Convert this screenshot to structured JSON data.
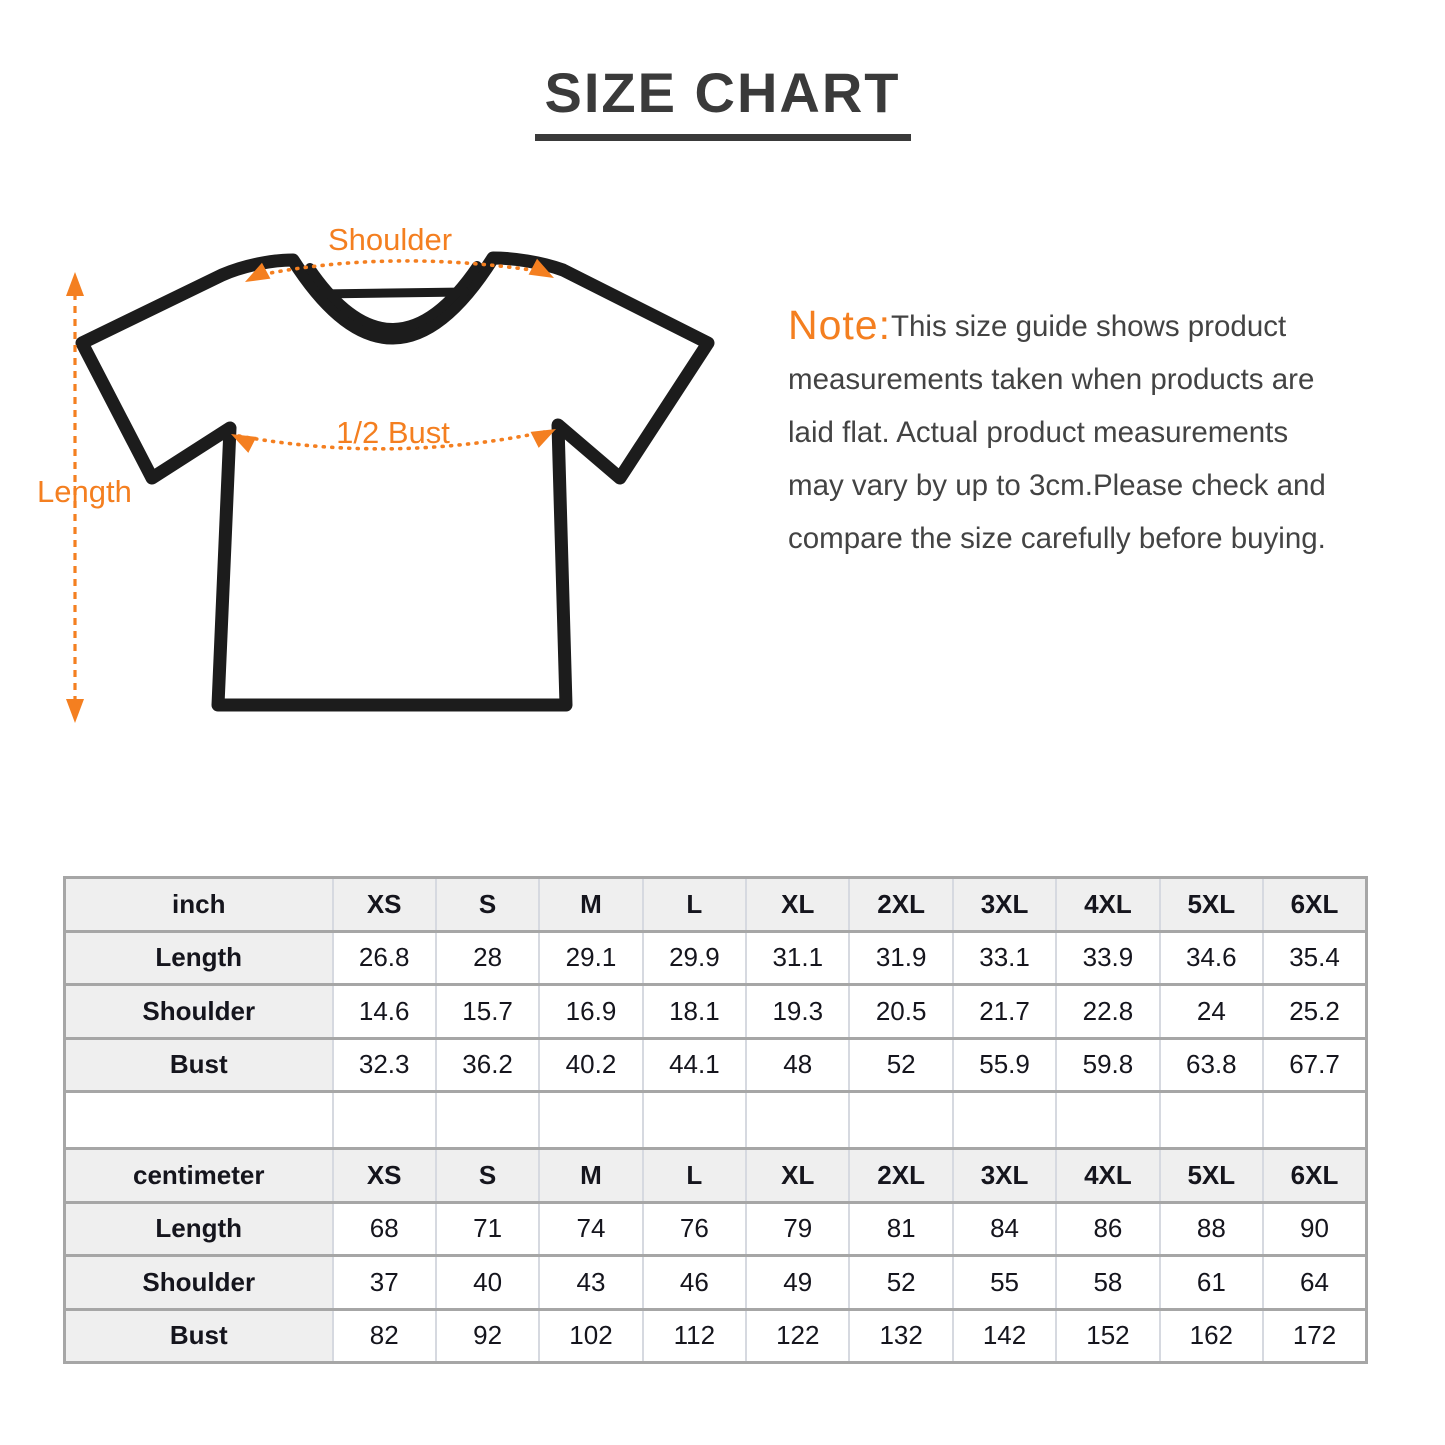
{
  "page": {
    "title": "SIZE CHART"
  },
  "theme": {
    "accent": "#f47f20",
    "ink": "#3a3a3a",
    "note_ink": "#434343",
    "table_ink": "#15151d",
    "header_bg": "#efefef",
    "border_strong": "#a6a6a6",
    "border_light": "#d6d9e0",
    "outline": "#1c1c1c"
  },
  "figure": {
    "shoulder_label": "Shoulder",
    "bust_label": "1/2 Bust",
    "length_label": "Length"
  },
  "note": {
    "label": "Note:",
    "line1": "This size guide shows product",
    "line2": "measurements taken when products are",
    "line3": "laid flat. Actual product measurements",
    "line4": "may vary by up to 3cm.Please check and",
    "line5": "compare the size carefully before buying."
  },
  "size_tables": [
    {
      "unit_label": "inch",
      "sizes": [
        "XS",
        "S",
        "M",
        "L",
        "XL",
        "2XL",
        "3XL",
        "4XL",
        "5XL",
        "6XL"
      ],
      "rows": [
        {
          "label": "Length",
          "values": [
            "26.8",
            "28",
            "29.1",
            "29.9",
            "31.1",
            "31.9",
            "33.1",
            "33.9",
            "34.6",
            "35.4"
          ]
        },
        {
          "label": "Shoulder",
          "values": [
            "14.6",
            "15.7",
            "16.9",
            "18.1",
            "19.3",
            "20.5",
            "21.7",
            "22.8",
            "24",
            "25.2"
          ]
        },
        {
          "label": "Bust",
          "values": [
            "32.3",
            "36.2",
            "40.2",
            "44.1",
            "48",
            "52",
            "55.9",
            "59.8",
            "63.8",
            "67.7"
          ]
        }
      ]
    },
    {
      "unit_label": "centimeter",
      "sizes": [
        "XS",
        "S",
        "M",
        "L",
        "XL",
        "2XL",
        "3XL",
        "4XL",
        "5XL",
        "6XL"
      ],
      "rows": [
        {
          "label": "Length",
          "values": [
            "68",
            "71",
            "74",
            "76",
            "79",
            "81",
            "84",
            "86",
            "88",
            "90"
          ]
        },
        {
          "label": "Shoulder",
          "values": [
            "37",
            "40",
            "43",
            "46",
            "49",
            "52",
            "55",
            "58",
            "61",
            "64"
          ]
        },
        {
          "label": "Bust",
          "values": [
            "82",
            "92",
            "102",
            "112",
            "122",
            "132",
            "142",
            "152",
            "162",
            "172"
          ]
        }
      ]
    }
  ]
}
